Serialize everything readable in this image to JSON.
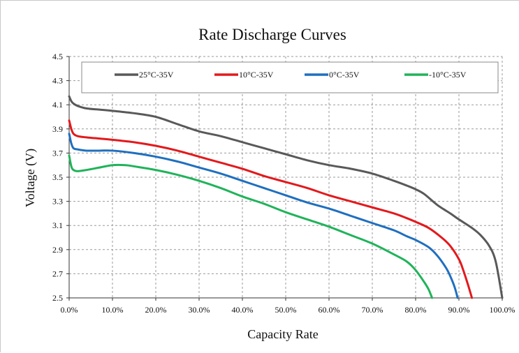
{
  "chart_data": {
    "type": "line",
    "title": "Rate Discharge Curves",
    "xlabel": "Capacity Rate",
    "ylabel": "Voltage (V)",
    "xlim": [
      0,
      100
    ],
    "ylim": [
      2.5,
      4.5
    ],
    "x_ticks": [
      "0.0%",
      "10.0%",
      "20.0%",
      "30.0%",
      "40.0%",
      "50.0%",
      "60.0%",
      "70.0%",
      "80.0%",
      "90.0%",
      "100.0%"
    ],
    "y_ticks": [
      "2.5",
      "2.7",
      "2.9",
      "3.1",
      "3.3",
      "3.5",
      "3.7",
      "3.9",
      "4.1",
      "4.3",
      "4.5"
    ],
    "grid": true,
    "legend_position": "top",
    "series": [
      {
        "name": "25°C-35V",
        "color": "#595959",
        "points": [
          [
            0,
            4.17
          ],
          [
            0.5,
            4.13
          ],
          [
            1,
            4.11
          ],
          [
            2,
            4.09
          ],
          [
            4,
            4.07
          ],
          [
            7,
            4.06
          ],
          [
            10,
            4.05
          ],
          [
            15,
            4.03
          ],
          [
            20,
            4.0
          ],
          [
            25,
            3.94
          ],
          [
            30,
            3.88
          ],
          [
            35,
            3.84
          ],
          [
            40,
            3.79
          ],
          [
            45,
            3.74
          ],
          [
            50,
            3.69
          ],
          [
            55,
            3.64
          ],
          [
            60,
            3.6
          ],
          [
            65,
            3.57
          ],
          [
            70,
            3.53
          ],
          [
            75,
            3.47
          ],
          [
            78,
            3.43
          ],
          [
            80,
            3.4
          ],
          [
            82,
            3.36
          ],
          [
            85,
            3.27
          ],
          [
            88,
            3.2
          ],
          [
            90,
            3.15
          ],
          [
            93,
            3.08
          ],
          [
            95,
            3.02
          ],
          [
            97,
            2.93
          ],
          [
            98.5,
            2.8
          ],
          [
            100,
            2.5
          ]
        ]
      },
      {
        "name": "10°C-35V",
        "color": "#e3191c",
        "points": [
          [
            0,
            3.97
          ],
          [
            0.5,
            3.9
          ],
          [
            1,
            3.86
          ],
          [
            2,
            3.84
          ],
          [
            4,
            3.83
          ],
          [
            7,
            3.82
          ],
          [
            10,
            3.81
          ],
          [
            15,
            3.79
          ],
          [
            20,
            3.76
          ],
          [
            25,
            3.72
          ],
          [
            30,
            3.67
          ],
          [
            35,
            3.62
          ],
          [
            40,
            3.57
          ],
          [
            45,
            3.51
          ],
          [
            50,
            3.46
          ],
          [
            55,
            3.41
          ],
          [
            60,
            3.35
          ],
          [
            65,
            3.3
          ],
          [
            70,
            3.25
          ],
          [
            75,
            3.2
          ],
          [
            78,
            3.16
          ],
          [
            80,
            3.13
          ],
          [
            83,
            3.08
          ],
          [
            86,
            3.0
          ],
          [
            88,
            2.93
          ],
          [
            90,
            2.82
          ],
          [
            91,
            2.73
          ],
          [
            92,
            2.62
          ],
          [
            93,
            2.5
          ]
        ]
      },
      {
        "name": "0°C-35V",
        "color": "#1f6fbf",
        "points": [
          [
            0,
            3.86
          ],
          [
            0.5,
            3.78
          ],
          [
            1,
            3.74
          ],
          [
            2,
            3.73
          ],
          [
            4,
            3.72
          ],
          [
            7,
            3.72
          ],
          [
            10,
            3.72
          ],
          [
            15,
            3.7
          ],
          [
            20,
            3.67
          ],
          [
            25,
            3.63
          ],
          [
            30,
            3.58
          ],
          [
            35,
            3.53
          ],
          [
            40,
            3.47
          ],
          [
            45,
            3.41
          ],
          [
            50,
            3.35
          ],
          [
            55,
            3.29
          ],
          [
            60,
            3.24
          ],
          [
            65,
            3.18
          ],
          [
            70,
            3.12
          ],
          [
            75,
            3.06
          ],
          [
            78,
            3.01
          ],
          [
            80,
            2.98
          ],
          [
            83,
            2.92
          ],
          [
            85,
            2.85
          ],
          [
            87,
            2.75
          ],
          [
            88,
            2.68
          ],
          [
            89,
            2.59
          ],
          [
            89.7,
            2.5
          ]
        ]
      },
      {
        "name": "-10°C-35V",
        "color": "#20b35a",
        "points": [
          [
            0,
            3.68
          ],
          [
            0.5,
            3.59
          ],
          [
            1,
            3.56
          ],
          [
            2,
            3.55
          ],
          [
            4,
            3.56
          ],
          [
            7,
            3.58
          ],
          [
            10,
            3.6
          ],
          [
            13,
            3.6
          ],
          [
            15,
            3.59
          ],
          [
            20,
            3.56
          ],
          [
            25,
            3.52
          ],
          [
            30,
            3.47
          ],
          [
            35,
            3.41
          ],
          [
            40,
            3.34
          ],
          [
            45,
            3.28
          ],
          [
            50,
            3.21
          ],
          [
            55,
            3.15
          ],
          [
            60,
            3.09
          ],
          [
            65,
            3.02
          ],
          [
            70,
            2.95
          ],
          [
            75,
            2.86
          ],
          [
            78,
            2.8
          ],
          [
            80,
            2.73
          ],
          [
            82,
            2.63
          ],
          [
            83,
            2.57
          ],
          [
            83.8,
            2.5
          ]
        ]
      }
    ]
  }
}
